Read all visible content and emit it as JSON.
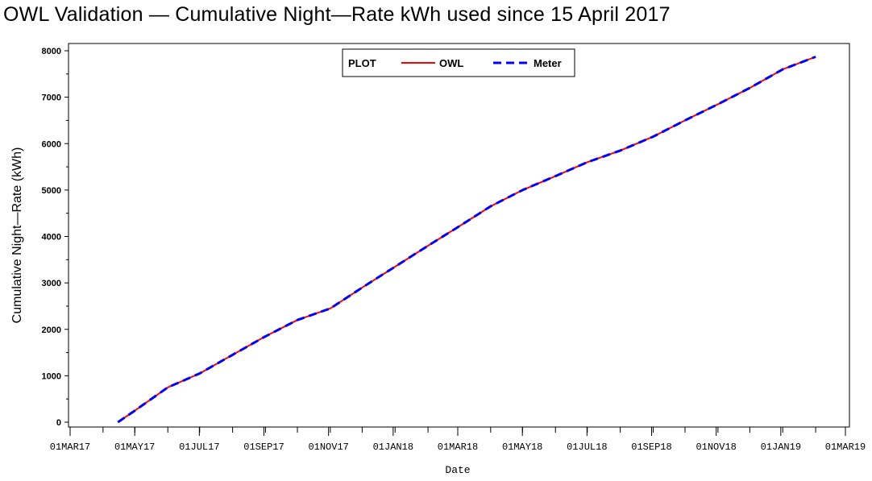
{
  "chart_data": {
    "type": "line",
    "title": "OWL Validation — Cumulative Night—Rate kWh used since 15 April 2017",
    "xlabel": "Date",
    "ylabel": "Cumulative Night—Rate (kWh)",
    "x_tick_labels": [
      "01MAR17",
      "01MAY17",
      "01JUL17",
      "01SEP17",
      "01NOV17",
      "01JAN18",
      "01MAR18",
      "01MAY18",
      "01JUL18",
      "01SEP18",
      "01NOV18",
      "01JAN19",
      "01MAR19"
    ],
    "xlim": [
      "2017-03-01",
      "2019-03-01"
    ],
    "y_ticks": [
      0,
      1000,
      2000,
      3000,
      4000,
      5000,
      6000,
      7000,
      8000
    ],
    "ylim": [
      0,
      8000
    ],
    "legend": {
      "title": "PLOT",
      "placement": "top-center"
    },
    "x": [
      "2017-04-15",
      "2017-05-01",
      "2017-06-01",
      "2017-07-01",
      "2017-08-01",
      "2017-09-01",
      "2017-10-01",
      "2017-11-01",
      "2017-12-01",
      "2018-01-01",
      "2018-02-01",
      "2018-03-01",
      "2018-04-01",
      "2018-05-01",
      "2018-06-01",
      "2018-07-01",
      "2018-08-01",
      "2018-09-01",
      "2018-10-01",
      "2018-11-01",
      "2018-12-01",
      "2019-01-01",
      "2019-02-01"
    ],
    "series": [
      {
        "name": "OWL",
        "color": "#ff0000",
        "style": "solid",
        "values": [
          0,
          250,
          750,
          1050,
          1450,
          1850,
          2200,
          2450,
          2900,
          3350,
          3800,
          4200,
          4650,
          5000,
          5300,
          5600,
          5850,
          6150,
          6500,
          6850,
          7200,
          7600,
          7870
        ]
      },
      {
        "name": "Meter",
        "color": "#0000ff",
        "style": "dashed",
        "values": [
          0,
          250,
          750,
          1050,
          1450,
          1850,
          2200,
          2450,
          2900,
          3350,
          3800,
          4200,
          4650,
          5000,
          5300,
          5600,
          5850,
          6150,
          6500,
          6850,
          7200,
          7600,
          7870
        ]
      }
    ]
  }
}
